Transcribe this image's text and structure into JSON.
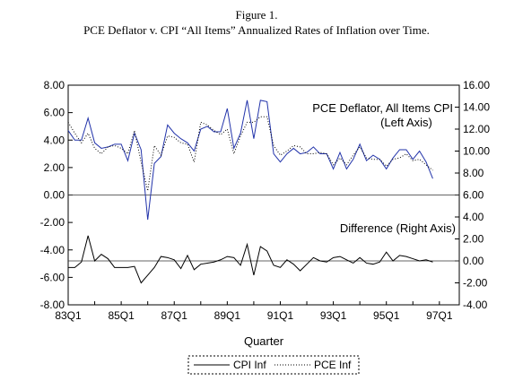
{
  "chart_data": {
    "type": "line",
    "title": "Figure 1.",
    "subtitle": "PCE Deflator v. CPI “All Items” Annualized Rates of Inflation over Time.",
    "xlabel": "Quarter",
    "x_tick_labels": [
      "83Q1",
      "85Q1",
      "87Q1",
      "89Q1",
      "91Q1",
      "93Q1",
      "95Q1",
      "97Q1"
    ],
    "x_range": [
      "83Q1",
      "97Q4"
    ],
    "left_axis": {
      "ylim": [
        -8,
        8
      ],
      "tick_labels": [
        "8.00",
        "6.00",
        "4.00",
        "2.00",
        "0.00",
        "-2.00",
        "-4.00",
        "-6.00",
        "-8.00"
      ]
    },
    "right_axis": {
      "ylim": [
        -4,
        16
      ],
      "tick_labels": [
        "16.00",
        "14.00",
        "12.00",
        "10.00",
        "8.00",
        "6.00",
        "4.00",
        "2.00",
        "0.00",
        "-2.00",
        "-4.00"
      ]
    },
    "annotations": {
      "upper_line1": "PCE Deflator, All Items CPI",
      "upper_line2": "(Left Axis)",
      "lower": "Difference (Right Axis)"
    },
    "legend": {
      "position": "bottom-center",
      "entries": [
        "CPI Inf",
        "PCE Inf"
      ]
    },
    "grid": false,
    "series": [
      {
        "name": "CPI Inf",
        "axis": "left",
        "style": "solid",
        "x_start": "83Q1",
        "values": [
          4.7,
          4.0,
          4.0,
          5.6,
          3.8,
          3.4,
          3.5,
          3.7,
          3.7,
          2.5,
          4.5,
          3.3,
          -1.8,
          2.3,
          2.8,
          5.1,
          4.5,
          4.1,
          3.8,
          3.2,
          4.8,
          5.0,
          4.6,
          4.6,
          6.3,
          3.4,
          4.5,
          6.9,
          4.1,
          6.9,
          6.8,
          3.0,
          2.4,
          3.0,
          3.4,
          3.0,
          3.1,
          3.5,
          3.0,
          3.0,
          1.9,
          3.1,
          1.9,
          2.6,
          3.7,
          2.5,
          2.9,
          2.6,
          1.9,
          2.7,
          3.3,
          3.3,
          2.6,
          3.2,
          2.4,
          1.2
        ]
      },
      {
        "name": "PCE Inf",
        "axis": "left",
        "style": "dotted",
        "x_start": "83Q1",
        "values": [
          5.3,
          4.5,
          3.8,
          4.5,
          3.4,
          3.0,
          3.5,
          3.6,
          3.4,
          3.0,
          4.7,
          2.4,
          0.3,
          3.6,
          2.9,
          4.3,
          4.2,
          3.8,
          3.7,
          2.4,
          5.3,
          5.1,
          4.7,
          4.4,
          4.8,
          3.0,
          4.3,
          5.3,
          5.3,
          5.7,
          5.7,
          3.6,
          2.9,
          3.2,
          3.6,
          3.5,
          3.0,
          3.0,
          3.1,
          3.0,
          2.2,
          2.7,
          2.2,
          2.9,
          3.5,
          2.7,
          2.6,
          2.6,
          2.1,
          2.6,
          2.7,
          3.0,
          2.5,
          2.6,
          2.2,
          1.8
        ]
      },
      {
        "name": "",
        "axis": "right",
        "style": "solid",
        "x_start": "83Q1",
        "values": [
          -0.6,
          -0.6,
          -0.1,
          2.3,
          0.0,
          0.6,
          0.2,
          -0.6,
          -0.6,
          -0.6,
          -0.5,
          -2.0,
          -1.3,
          -0.6,
          0.4,
          0.3,
          0.1,
          -0.7,
          0.5,
          -0.8,
          -0.3,
          -0.2,
          -0.1,
          0.1,
          0.4,
          0.3,
          -0.4,
          1.5,
          -1.3,
          1.3,
          0.9,
          -0.4,
          -0.6,
          0.1,
          -0.3,
          -0.9,
          -0.3,
          0.3,
          0.0,
          -0.1,
          0.3,
          0.4,
          0.1,
          -0.2,
          0.3,
          -0.2,
          -0.3,
          -0.1,
          0.8,
          0.0,
          0.5,
          0.4,
          0.2,
          0.0,
          0.1,
          -0.1
        ]
      }
    ]
  }
}
